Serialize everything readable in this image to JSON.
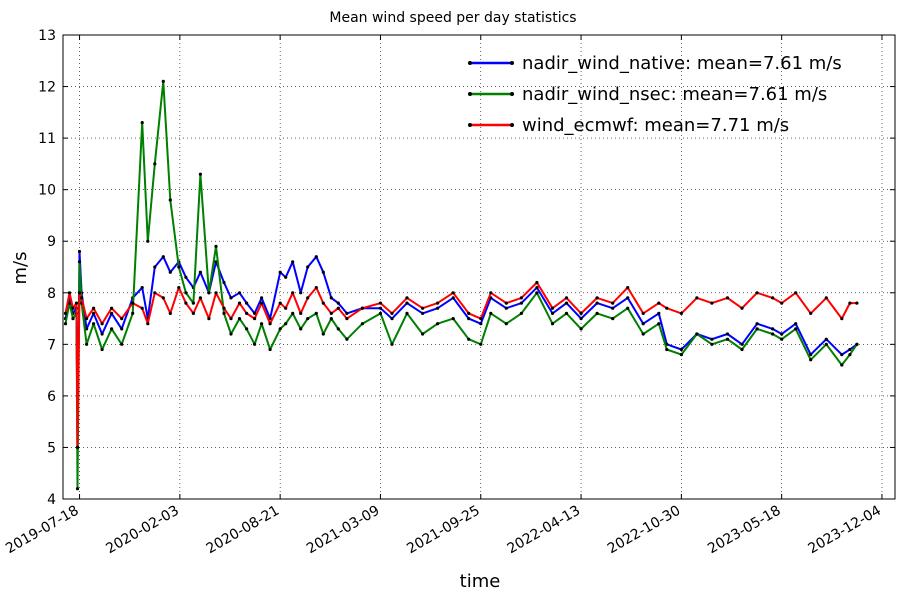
{
  "chart_data": {
    "type": "line",
    "title": "Mean wind speed per day statistics",
    "xlabel": "time",
    "ylabel": "m/s",
    "ylim": [
      4,
      13
    ],
    "xlim": [
      "2019-06-15",
      "2023-12-30"
    ],
    "yticks": [
      "4",
      "5",
      "6",
      "7",
      "8",
      "9",
      "10",
      "11",
      "12",
      "13"
    ],
    "xticks": [
      "2019-07-18",
      "2020-02-03",
      "2020-08-21",
      "2021-03-09",
      "2021-09-25",
      "2022-04-13",
      "2022-10-30",
      "2023-05-18",
      "2023-12-04"
    ],
    "grid": true,
    "legend_position": "top-right",
    "series": [
      {
        "name": "nadir_wind_native: mean=7.61 m/s",
        "color": "#0000ff",
        "x": [
          "2019-06-20",
          "2019-06-28",
          "2019-07-05",
          "2019-07-12",
          "2019-07-14",
          "2019-07-18",
          "2019-07-22",
          "2019-08-01",
          "2019-08-15",
          "2019-09-01",
          "2019-09-20",
          "2019-10-10",
          "2019-11-01",
          "2019-11-20",
          "2019-12-01",
          "2019-12-15",
          "2020-01-01",
          "2020-01-15",
          "2020-02-01",
          "2020-02-15",
          "2020-03-01",
          "2020-03-15",
          "2020-04-01",
          "2020-04-15",
          "2020-05-01",
          "2020-05-15",
          "2020-06-01",
          "2020-06-15",
          "2020-07-01",
          "2020-07-15",
          "2020-08-01",
          "2020-08-21",
          "2020-09-01",
          "2020-09-15",
          "2020-10-01",
          "2020-10-15",
          "2020-11-01",
          "2020-11-15",
          "2020-12-01",
          "2020-12-15",
          "2021-01-01",
          "2021-02-01",
          "2021-03-09",
          "2021-04-01",
          "2021-05-01",
          "2021-06-01",
          "2021-07-01",
          "2021-08-01",
          "2021-09-01",
          "2021-09-25",
          "2021-10-15",
          "2021-11-15",
          "2021-12-15",
          "2022-01-15",
          "2022-02-15",
          "2022-03-15",
          "2022-04-13",
          "2022-05-15",
          "2022-06-15",
          "2022-07-15",
          "2022-08-15",
          "2022-09-15",
          "2022-10-01",
          "2022-10-30",
          "2022-11-30",
          "2022-12-30",
          "2023-01-30",
          "2023-02-28",
          "2023-03-30",
          "2023-04-30",
          "2023-05-18",
          "2023-06-15",
          "2023-07-15",
          "2023-08-15",
          "2023-09-15",
          "2023-10-01",
          "2023-10-15"
        ],
        "y": [
          7.5,
          7.9,
          7.6,
          7.7,
          5.0,
          8.8,
          8.0,
          7.3,
          7.6,
          7.2,
          7.6,
          7.3,
          7.9,
          8.1,
          7.5,
          8.5,
          8.7,
          8.4,
          8.6,
          8.3,
          8.1,
          8.4,
          8.0,
          8.6,
          8.2,
          7.9,
          8.0,
          7.8,
          7.6,
          7.9,
          7.5,
          8.4,
          8.3,
          8.6,
          8.0,
          8.5,
          8.7,
          8.4,
          7.9,
          7.8,
          7.6,
          7.7,
          7.7,
          7.5,
          7.8,
          7.6,
          7.7,
          7.9,
          7.5,
          7.4,
          7.9,
          7.7,
          7.8,
          8.1,
          7.6,
          7.8,
          7.5,
          7.8,
          7.7,
          7.9,
          7.4,
          7.6,
          7.0,
          6.9,
          7.2,
          7.1,
          7.2,
          7.0,
          7.4,
          7.3,
          7.2,
          7.4,
          6.8,
          7.1,
          6.8,
          6.9,
          7.0
        ]
      },
      {
        "name": "nadir_wind_nsec: mean=7.61 m/s",
        "color": "#008000",
        "x": [
          "2019-06-20",
          "2019-06-28",
          "2019-07-05",
          "2019-07-12",
          "2019-07-14",
          "2019-07-18",
          "2019-07-22",
          "2019-08-01",
          "2019-08-15",
          "2019-09-01",
          "2019-09-20",
          "2019-10-10",
          "2019-11-01",
          "2019-11-20",
          "2019-12-01",
          "2019-12-15",
          "2020-01-01",
          "2020-01-15",
          "2020-02-01",
          "2020-02-15",
          "2020-03-01",
          "2020-03-15",
          "2020-04-01",
          "2020-04-15",
          "2020-05-01",
          "2020-05-15",
          "2020-06-01",
          "2020-06-15",
          "2020-07-01",
          "2020-07-15",
          "2020-08-01",
          "2020-08-21",
          "2020-09-01",
          "2020-09-15",
          "2020-10-01",
          "2020-10-15",
          "2020-11-01",
          "2020-11-15",
          "2020-12-01",
          "2020-12-15",
          "2021-01-01",
          "2021-02-01",
          "2021-03-09",
          "2021-04-01",
          "2021-05-01",
          "2021-06-01",
          "2021-07-01",
          "2021-08-01",
          "2021-09-01",
          "2021-09-25",
          "2021-10-15",
          "2021-11-15",
          "2021-12-15",
          "2022-01-15",
          "2022-02-15",
          "2022-03-15",
          "2022-04-13",
          "2022-05-15",
          "2022-06-15",
          "2022-07-15",
          "2022-08-15",
          "2022-09-15",
          "2022-10-01",
          "2022-10-30",
          "2022-11-30",
          "2022-12-30",
          "2023-01-30",
          "2023-02-28",
          "2023-03-30",
          "2023-04-30",
          "2023-05-18",
          "2023-06-15",
          "2023-07-15",
          "2023-08-15",
          "2023-09-15",
          "2023-10-01",
          "2023-10-15"
        ],
        "y": [
          7.4,
          7.8,
          7.5,
          7.6,
          4.2,
          8.6,
          7.8,
          7.0,
          7.4,
          6.9,
          7.3,
          7.0,
          7.6,
          11.3,
          9.0,
          10.5,
          12.1,
          9.8,
          8.5,
          8.0,
          7.8,
          10.3,
          8.0,
          8.9,
          7.6,
          7.2,
          7.5,
          7.3,
          7.0,
          7.4,
          6.9,
          7.3,
          7.4,
          7.6,
          7.3,
          7.5,
          7.6,
          7.2,
          7.5,
          7.3,
          7.1,
          7.4,
          7.6,
          7.0,
          7.6,
          7.2,
          7.4,
          7.5,
          7.1,
          7.0,
          7.6,
          7.4,
          7.6,
          8.0,
          7.4,
          7.6,
          7.3,
          7.6,
          7.5,
          7.7,
          7.2,
          7.4,
          6.9,
          6.8,
          7.2,
          7.0,
          7.1,
          6.9,
          7.3,
          7.2,
          7.1,
          7.3,
          6.7,
          7.0,
          6.6,
          6.8,
          7.0
        ]
      },
      {
        "name": "wind_ecmwf: mean=7.71 m/s",
        "color": "#ff0000",
        "x": [
          "2019-06-20",
          "2019-06-28",
          "2019-07-05",
          "2019-07-12",
          "2019-07-14",
          "2019-07-18",
          "2019-07-22",
          "2019-08-01",
          "2019-08-15",
          "2019-09-01",
          "2019-09-20",
          "2019-10-10",
          "2019-11-01",
          "2019-11-20",
          "2019-12-01",
          "2019-12-15",
          "2020-01-01",
          "2020-01-15",
          "2020-02-01",
          "2020-02-15",
          "2020-03-01",
          "2020-03-15",
          "2020-04-01",
          "2020-04-15",
          "2020-05-01",
          "2020-05-15",
          "2020-06-01",
          "2020-06-15",
          "2020-07-01",
          "2020-07-15",
          "2020-08-01",
          "2020-08-21",
          "2020-09-01",
          "2020-09-15",
          "2020-10-01",
          "2020-10-15",
          "2020-11-01",
          "2020-11-15",
          "2020-12-01",
          "2020-12-15",
          "2021-01-01",
          "2021-02-01",
          "2021-03-09",
          "2021-04-01",
          "2021-05-01",
          "2021-06-01",
          "2021-07-01",
          "2021-08-01",
          "2021-09-01",
          "2021-09-25",
          "2021-10-15",
          "2021-11-15",
          "2021-12-15",
          "2022-01-15",
          "2022-02-15",
          "2022-03-15",
          "2022-04-13",
          "2022-05-15",
          "2022-06-15",
          "2022-07-15",
          "2022-08-15",
          "2022-09-15",
          "2022-10-01",
          "2022-10-30",
          "2022-11-30",
          "2022-12-30",
          "2023-01-30",
          "2023-02-28",
          "2023-03-30",
          "2023-04-30",
          "2023-05-18",
          "2023-06-15",
          "2023-07-15",
          "2023-08-15",
          "2023-09-15",
          "2023-10-01",
          "2023-10-15"
        ],
        "y": [
          7.6,
          8.0,
          7.7,
          7.8,
          5.0,
          8.0,
          7.9,
          7.5,
          7.7,
          7.4,
          7.7,
          7.5,
          7.8,
          7.7,
          7.4,
          8.0,
          7.9,
          7.6,
          8.1,
          7.8,
          7.6,
          7.9,
          7.5,
          8.0,
          7.7,
          7.5,
          7.8,
          7.6,
          7.5,
          7.8,
          7.4,
          7.8,
          7.7,
          8.0,
          7.6,
          7.9,
          8.1,
          7.8,
          7.6,
          7.7,
          7.5,
          7.7,
          7.8,
          7.6,
          7.9,
          7.7,
          7.8,
          8.0,
          7.6,
          7.5,
          8.0,
          7.8,
          7.9,
          8.2,
          7.7,
          7.9,
          7.6,
          7.9,
          7.8,
          8.1,
          7.6,
          7.8,
          7.7,
          7.6,
          7.9,
          7.8,
          7.9,
          7.7,
          8.0,
          7.9,
          7.8,
          8.0,
          7.6,
          7.9,
          7.5,
          7.8,
          7.8
        ]
      }
    ]
  }
}
